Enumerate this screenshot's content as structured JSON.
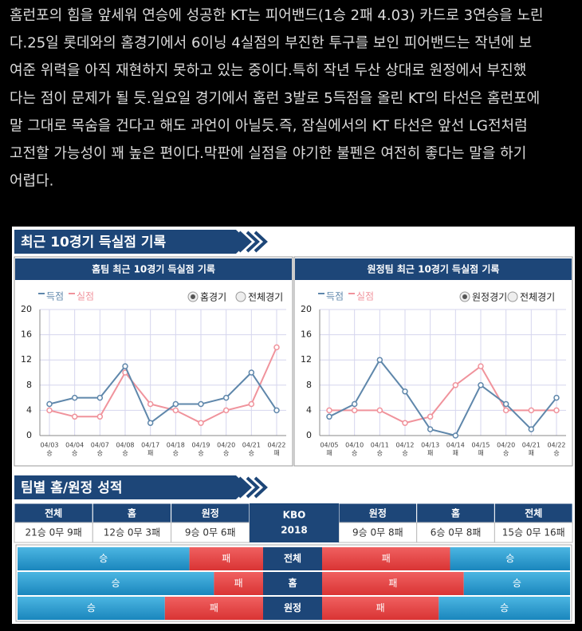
{
  "article": {
    "lines": [
      "홈런포의 힘을 앞세워 연승에 성공한 KT는 피어밴드(1승 2패 4.03) 카드로 3연승을 노린",
      "다.25일 롯데와의 홈경기에서 6이닝 4실점의 부진한 투구를 보인 피어밴드는 작년에 보",
      "여준 위력을 아직 재현하지 못하고 있는 중이다.특히 작년 두산 상대로 원정에서 부진했",
      "다는 점이 문제가 될 듯.일요일 경기에서 홈런 3발로 5득점을 올린 KT의 타선은 홈런포에",
      "말 그대로 목숨을 건다고 해도 과언이 아닐듯.즉, 잠실에서의 KT 타선은 앞선 LG전처럼",
      "고전할 가능성이 꽤 높은 편이다.막판에 실점을 야기한 불펜은 여전히 좋다는 말을 하기",
      "어렵다."
    ]
  },
  "sections": [
    "최근 10경기 득실점 기록",
    "팀별 홈/원정 성적"
  ],
  "chart_data": [
    {
      "type": "line",
      "title": "홈팀 최근 10경기 득실점 기록",
      "categories": [
        "04/03",
        "04/04",
        "04/07",
        "04/08",
        "04/17",
        "04/18",
        "04/19",
        "04/20",
        "04/21",
        "04/22"
      ],
      "results": [
        "승",
        "승",
        "승",
        "승",
        "패",
        "승",
        "승",
        "승",
        "승",
        "패"
      ],
      "series": [
        {
          "name": "득점",
          "color": "#5f87ab",
          "values": [
            5,
            6,
            6,
            11,
            2,
            5,
            5,
            6,
            10,
            4
          ]
        },
        {
          "name": "실점",
          "color": "#f0939c",
          "values": [
            4,
            3,
            3,
            10,
            5,
            4,
            2,
            4,
            5,
            14
          ]
        }
      ],
      "options": [
        "홈경기",
        "전체경기"
      ],
      "selected": 0,
      "ylim": [
        0,
        20
      ],
      "yticks": [
        0,
        4,
        8,
        12,
        16,
        20
      ],
      "grid": true
    },
    {
      "type": "line",
      "title": "원정팀 최근 10경기 득실점 기록",
      "categories": [
        "04/05",
        "04/10",
        "04/11",
        "04/12",
        "04/13",
        "04/14",
        "04/15",
        "04/20",
        "04/21",
        "04/22"
      ],
      "results": [
        "패",
        "승",
        "승",
        "승",
        "패",
        "패",
        "패",
        "승",
        "패",
        "승"
      ],
      "series": [
        {
          "name": "득점",
          "color": "#5f87ab",
          "values": [
            3,
            5,
            12,
            7,
            1,
            0,
            8,
            5,
            1,
            6
          ]
        },
        {
          "name": "실점",
          "color": "#f0939c",
          "values": [
            4,
            4,
            4,
            2,
            3,
            8,
            11,
            4,
            4,
            4
          ]
        }
      ],
      "options": [
        "원정경기",
        "전체경기"
      ],
      "selected": 0,
      "ylim": [
        0,
        20
      ],
      "yticks": [
        0,
        4,
        8,
        12,
        16,
        20
      ],
      "grid": true
    }
  ],
  "record_table": {
    "center_title": "KBO",
    "center_year": "2018",
    "home": {
      "headers": [
        "전체",
        "홈",
        "원정"
      ],
      "values": [
        "21승 0무 9패",
        "12승 0무 3패",
        "9승 0무 6패"
      ]
    },
    "away": {
      "headers": [
        "원정",
        "홈",
        "전체"
      ],
      "values": [
        "9승 0무 8패",
        "6승 0무 8패",
        "15승 0무 16패"
      ]
    }
  },
  "bars": {
    "win_label": "승",
    "loss_label": "패",
    "rows": [
      {
        "label": "전체",
        "home": {
          "win": 21,
          "loss": 9
        },
        "away": {
          "win": 15,
          "loss": 16
        }
      },
      {
        "label": "홈",
        "home": {
          "win": 12,
          "loss": 3
        },
        "away": {
          "win": 6,
          "loss": 8
        }
      },
      {
        "label": "원정",
        "home": {
          "win": 9,
          "loss": 6
        },
        "away": {
          "win": 9,
          "loss": 8
        }
      }
    ]
  }
}
